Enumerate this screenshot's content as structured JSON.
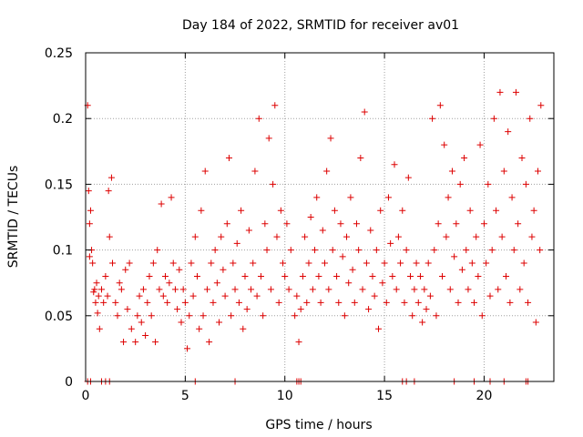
{
  "chart_data": {
    "type": "scatter",
    "title": "Day 184 of 2022, SRMTID for receiver av01",
    "xlabel": "GPS time / hours",
    "ylabel": "SRMTID / TECUs",
    "xlim": [
      0,
      23.5
    ],
    "ylim": [
      0,
      0.25
    ],
    "x_ticks": [
      0,
      5,
      10,
      15,
      20
    ],
    "x_tick_labels": [
      "0",
      "5",
      "10",
      "15",
      "20"
    ],
    "y_ticks": [
      0,
      0.05,
      0.1,
      0.15,
      0.2,
      0.25
    ],
    "y_tick_labels": [
      "0",
      "0.05",
      "0.1",
      "0.15",
      "0.2",
      "0.25"
    ],
    "grid": true,
    "marker": "+",
    "colors": {
      "points": "#dd0000",
      "grid": "#a0a0a0",
      "frame": "#000000"
    },
    "series": [
      {
        "name": "SRMTID",
        "points": [
          [
            0.1,
            0.21
          ],
          [
            0.15,
            0.145
          ],
          [
            0.2,
            0.12
          ],
          [
            0.2,
            0.095
          ],
          [
            0.25,
            0.13
          ],
          [
            0.3,
            0.1
          ],
          [
            0.35,
            0.09
          ],
          [
            0.4,
            0.068
          ],
          [
            0.45,
            0.07
          ],
          [
            0.5,
            0.06
          ],
          [
            0.55,
            0.075
          ],
          [
            0.6,
            0.052
          ],
          [
            0.65,
            0.065
          ],
          [
            0.7,
            0.04
          ],
          [
            0.8,
            0.07
          ],
          [
            0.9,
            0.06
          ],
          [
            1.0,
            0.08
          ],
          [
            1.1,
            0.065
          ],
          [
            1.15,
            0.145
          ],
          [
            1.2,
            0.11
          ],
          [
            1.3,
            0.155
          ],
          [
            1.35,
            0.09
          ],
          [
            1.5,
            0.06
          ],
          [
            1.6,
            0.05
          ],
          [
            1.7,
            0.075
          ],
          [
            1.8,
            0.07
          ],
          [
            1.9,
            0.03
          ],
          [
            2.0,
            0.085
          ],
          [
            2.1,
            0.055
          ],
          [
            2.2,
            0.09
          ],
          [
            2.3,
            0.04
          ],
          [
            2.5,
            0.03
          ],
          [
            2.6,
            0.05
          ],
          [
            2.7,
            0.065
          ],
          [
            2.8,
            0.045
          ],
          [
            2.9,
            0.07
          ],
          [
            3.0,
            0.035
          ],
          [
            3.1,
            0.06
          ],
          [
            3.2,
            0.08
          ],
          [
            3.3,
            0.05
          ],
          [
            3.4,
            0.09
          ],
          [
            3.5,
            0.03
          ],
          [
            3.6,
            0.1
          ],
          [
            3.7,
            0.07
          ],
          [
            3.8,
            0.135
          ],
          [
            3.9,
            0.065
          ],
          [
            4.0,
            0.08
          ],
          [
            4.1,
            0.06
          ],
          [
            4.2,
            0.075
          ],
          [
            4.3,
            0.14
          ],
          [
            4.4,
            0.09
          ],
          [
            4.5,
            0.07
          ],
          [
            4.6,
            0.055
          ],
          [
            4.7,
            0.085
          ],
          [
            4.8,
            0.045
          ],
          [
            4.9,
            0.07
          ],
          [
            5.0,
            0.06
          ],
          [
            5.1,
            0.025
          ],
          [
            5.2,
            0.05
          ],
          [
            5.3,
            0.09
          ],
          [
            5.4,
            0.065
          ],
          [
            5.5,
            0.11
          ],
          [
            5.6,
            0.08
          ],
          [
            5.7,
            0.04
          ],
          [
            5.8,
            0.13
          ],
          [
            5.9,
            0.05
          ],
          [
            6.0,
            0.16
          ],
          [
            6.1,
            0.07
          ],
          [
            6.2,
            0.03
          ],
          [
            6.3,
            0.09
          ],
          [
            6.4,
            0.06
          ],
          [
            6.5,
            0.1
          ],
          [
            6.6,
            0.075
          ],
          [
            6.7,
            0.045
          ],
          [
            6.8,
            0.11
          ],
          [
            6.9,
            0.085
          ],
          [
            7.0,
            0.065
          ],
          [
            7.1,
            0.12
          ],
          [
            7.2,
            0.17
          ],
          [
            7.3,
            0.05
          ],
          [
            7.4,
            0.09
          ],
          [
            7.5,
            0.07
          ],
          [
            7.6,
            0.105
          ],
          [
            7.7,
            0.06
          ],
          [
            7.8,
            0.13
          ],
          [
            7.9,
            0.04
          ],
          [
            8.0,
            0.08
          ],
          [
            8.1,
            0.055
          ],
          [
            8.2,
            0.115
          ],
          [
            8.3,
            0.07
          ],
          [
            8.4,
            0.09
          ],
          [
            8.5,
            0.16
          ],
          [
            8.6,
            0.065
          ],
          [
            8.7,
            0.2
          ],
          [
            8.8,
            0.08
          ],
          [
            8.9,
            0.05
          ],
          [
            9.0,
            0.12
          ],
          [
            9.1,
            0.1
          ],
          [
            9.2,
            0.185
          ],
          [
            9.3,
            0.07
          ],
          [
            9.4,
            0.15
          ],
          [
            9.5,
            0.21
          ],
          [
            9.6,
            0.11
          ],
          [
            9.7,
            0.06
          ],
          [
            9.8,
            0.13
          ],
          [
            9.9,
            0.09
          ],
          [
            10.0,
            0.08
          ],
          [
            10.1,
            0.12
          ],
          [
            10.2,
            0.07
          ],
          [
            10.3,
            0.1
          ],
          [
            10.5,
            0.05
          ],
          [
            10.6,
            0.065
          ],
          [
            10.7,
            0.03
          ],
          [
            10.8,
            0.055
          ],
          [
            10.9,
            0.08
          ],
          [
            11.0,
            0.11
          ],
          [
            11.1,
            0.06
          ],
          [
            11.2,
            0.09
          ],
          [
            11.3,
            0.125
          ],
          [
            11.4,
            0.07
          ],
          [
            11.5,
            0.1
          ],
          [
            11.6,
            0.14
          ],
          [
            11.7,
            0.08
          ],
          [
            11.8,
            0.06
          ],
          [
            11.9,
            0.115
          ],
          [
            12.0,
            0.09
          ],
          [
            12.1,
            0.16
          ],
          [
            12.2,
            0.07
          ],
          [
            12.3,
            0.185
          ],
          [
            12.4,
            0.1
          ],
          [
            12.5,
            0.13
          ],
          [
            12.6,
            0.08
          ],
          [
            12.7,
            0.06
          ],
          [
            12.8,
            0.12
          ],
          [
            12.9,
            0.095
          ],
          [
            13.0,
            0.05
          ],
          [
            13.1,
            0.11
          ],
          [
            13.2,
            0.075
          ],
          [
            13.3,
            0.14
          ],
          [
            13.4,
            0.085
          ],
          [
            13.5,
            0.06
          ],
          [
            13.6,
            0.12
          ],
          [
            13.7,
            0.1
          ],
          [
            13.8,
            0.17
          ],
          [
            13.9,
            0.07
          ],
          [
            14.0,
            0.205
          ],
          [
            14.1,
            0.09
          ],
          [
            14.2,
            0.055
          ],
          [
            14.3,
            0.115
          ],
          [
            14.4,
            0.08
          ],
          [
            14.5,
            0.065
          ],
          [
            14.6,
            0.1
          ],
          [
            14.7,
            0.04
          ],
          [
            14.8,
            0.13
          ],
          [
            14.9,
            0.075
          ],
          [
            15.0,
            0.09
          ],
          [
            15.1,
            0.06
          ],
          [
            15.2,
            0.14
          ],
          [
            15.3,
            0.105
          ],
          [
            15.4,
            0.08
          ],
          [
            15.5,
            0.165
          ],
          [
            15.6,
            0.07
          ],
          [
            15.7,
            0.11
          ],
          [
            15.8,
            0.09
          ],
          [
            15.9,
            0.13
          ],
          [
            16.0,
            0.06
          ],
          [
            16.1,
            0.1
          ],
          [
            16.2,
            0.155
          ],
          [
            16.3,
            0.08
          ],
          [
            16.4,
            0.05
          ],
          [
            16.5,
            0.07
          ],
          [
            16.6,
            0.09
          ],
          [
            16.7,
            0.06
          ],
          [
            16.8,
            0.08
          ],
          [
            16.9,
            0.045
          ],
          [
            17.0,
            0.07
          ],
          [
            17.1,
            0.055
          ],
          [
            17.2,
            0.09
          ],
          [
            17.3,
            0.065
          ],
          [
            17.4,
            0.2
          ],
          [
            17.5,
            0.1
          ],
          [
            17.6,
            0.05
          ],
          [
            17.7,
            0.12
          ],
          [
            17.8,
            0.21
          ],
          [
            17.9,
            0.08
          ],
          [
            18.0,
            0.18
          ],
          [
            18.1,
            0.11
          ],
          [
            18.2,
            0.14
          ],
          [
            18.3,
            0.07
          ],
          [
            18.4,
            0.16
          ],
          [
            18.5,
            0.095
          ],
          [
            18.6,
            0.12
          ],
          [
            18.7,
            0.06
          ],
          [
            18.8,
            0.15
          ],
          [
            18.9,
            0.085
          ],
          [
            19.0,
            0.17
          ],
          [
            19.1,
            0.1
          ],
          [
            19.2,
            0.07
          ],
          [
            19.3,
            0.13
          ],
          [
            19.4,
            0.09
          ],
          [
            19.5,
            0.06
          ],
          [
            19.6,
            0.11
          ],
          [
            19.7,
            0.08
          ],
          [
            19.8,
            0.18
          ],
          [
            19.9,
            0.05
          ],
          [
            20.0,
            0.12
          ],
          [
            20.1,
            0.09
          ],
          [
            20.2,
            0.15
          ],
          [
            20.3,
            0.065
          ],
          [
            20.4,
            0.1
          ],
          [
            20.5,
            0.2
          ],
          [
            20.6,
            0.13
          ],
          [
            20.7,
            0.07
          ],
          [
            20.8,
            0.22
          ],
          [
            20.9,
            0.11
          ],
          [
            21.0,
            0.16
          ],
          [
            21.1,
            0.08
          ],
          [
            21.2,
            0.19
          ],
          [
            21.3,
            0.06
          ],
          [
            21.4,
            0.14
          ],
          [
            21.5,
            0.1
          ],
          [
            21.6,
            0.22
          ],
          [
            21.7,
            0.12
          ],
          [
            21.8,
            0.07
          ],
          [
            21.9,
            0.17
          ],
          [
            22.0,
            0.09
          ],
          [
            22.1,
            0.15
          ],
          [
            22.2,
            0.06
          ],
          [
            22.3,
            0.2
          ],
          [
            22.4,
            0.11
          ],
          [
            22.5,
            0.13
          ],
          [
            22.6,
            0.045
          ],
          [
            22.7,
            0.16
          ],
          [
            22.8,
            0.1
          ],
          [
            22.85,
            0.21
          ]
        ]
      }
    ],
    "zero_points_x": [
      0.1,
      0.25,
      0.8,
      1.0,
      1.2,
      5.5,
      7.5,
      10.6,
      10.7,
      10.8,
      15.9,
      16.1,
      16.5,
      18.5,
      19.5,
      20.3,
      21.0,
      22.1,
      22.2
    ]
  }
}
